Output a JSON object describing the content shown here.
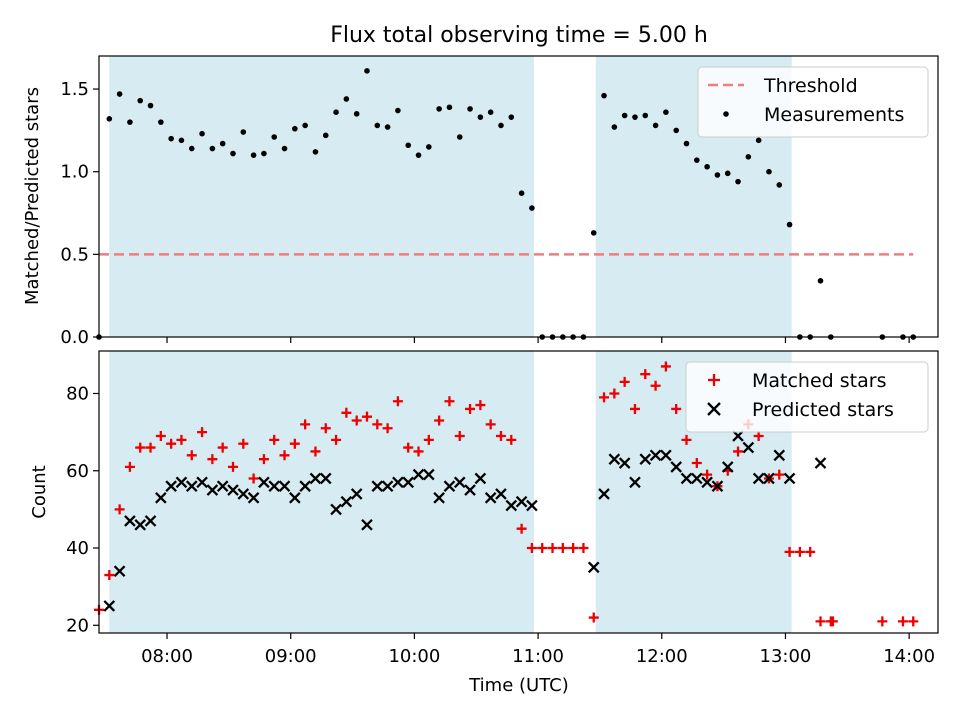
{
  "chart_data": [
    {
      "type": "scatter",
      "title": "Flux total observing time = 5.00 h",
      "xlabel": "",
      "ylabel": "Matched/Predicted stars",
      "xlim": [
        "07:27",
        "14:14"
      ],
      "ylim": [
        0,
        1.7
      ],
      "yticks": [
        0.0,
        0.5,
        1.0,
        1.5
      ],
      "ytick_labels": [
        "0.0",
        "0.5",
        "1.0",
        "1.5"
      ],
      "grid": false,
      "legend": {
        "placement": "top-right",
        "entries": [
          "Threshold",
          "Measurements"
        ]
      },
      "shaded_intervals": [
        [
          "07:32",
          "10:58"
        ],
        [
          "11:28",
          "13:03"
        ]
      ],
      "threshold": {
        "name": "Threshold",
        "value": 0.5,
        "x_range": [
          "07:27",
          "14:02"
        ],
        "color": "#f07d7d",
        "style": "dashed"
      },
      "series": [
        {
          "name": "Measurements",
          "color": "#000000",
          "marker": "dot",
          "points": [
            [
              "07:27",
              0.0
            ],
            [
              "07:32",
              1.32
            ],
            [
              "07:37",
              1.47
            ],
            [
              "07:42",
              1.3
            ],
            [
              "07:47",
              1.43
            ],
            [
              "07:52",
              1.4
            ],
            [
              "07:57",
              1.3
            ],
            [
              "08:02",
              1.2
            ],
            [
              "08:07",
              1.19
            ],
            [
              "08:12",
              1.14
            ],
            [
              "08:17",
              1.23
            ],
            [
              "08:22",
              1.14
            ],
            [
              "08:27",
              1.17
            ],
            [
              "08:32",
              1.11
            ],
            [
              "08:37",
              1.24
            ],
            [
              "08:42",
              1.1
            ],
            [
              "08:47",
              1.11
            ],
            [
              "08:52",
              1.21
            ],
            [
              "08:57",
              1.14
            ],
            [
              "09:02",
              1.26
            ],
            [
              "09:07",
              1.28
            ],
            [
              "09:12",
              1.12
            ],
            [
              "09:17",
              1.22
            ],
            [
              "09:22",
              1.36
            ],
            [
              "09:27",
              1.44
            ],
            [
              "09:32",
              1.35
            ],
            [
              "09:37",
              1.61
            ],
            [
              "09:42",
              1.28
            ],
            [
              "09:47",
              1.27
            ],
            [
              "09:52",
              1.37
            ],
            [
              "09:57",
              1.16
            ],
            [
              "10:02",
              1.1
            ],
            [
              "10:07",
              1.15
            ],
            [
              "10:12",
              1.38
            ],
            [
              "10:17",
              1.39
            ],
            [
              "10:22",
              1.21
            ],
            [
              "10:27",
              1.38
            ],
            [
              "10:32",
              1.33
            ],
            [
              "10:37",
              1.36
            ],
            [
              "10:42",
              1.28
            ],
            [
              "10:47",
              1.33
            ],
            [
              "10:52",
              0.87
            ],
            [
              "10:57",
              0.78
            ],
            [
              "11:02",
              0.0
            ],
            [
              "11:07",
              0.0
            ],
            [
              "11:12",
              0.0
            ],
            [
              "11:17",
              0.0
            ],
            [
              "11:22",
              0.0
            ],
            [
              "11:27",
              0.63
            ],
            [
              "11:32",
              1.46
            ],
            [
              "11:37",
              1.27
            ],
            [
              "11:42",
              1.34
            ],
            [
              "11:47",
              1.33
            ],
            [
              "11:52",
              1.34
            ],
            [
              "11:57",
              1.28
            ],
            [
              "12:02",
              1.36
            ],
            [
              "12:07",
              1.25
            ],
            [
              "12:12",
              1.17
            ],
            [
              "12:17",
              1.07
            ],
            [
              "12:22",
              1.03
            ],
            [
              "12:27",
              0.98
            ],
            [
              "12:32",
              0.99
            ],
            [
              "12:37",
              0.94
            ],
            [
              "12:42",
              1.09
            ],
            [
              "12:47",
              1.19
            ],
            [
              "12:52",
              1.0
            ],
            [
              "12:57",
              0.92
            ],
            [
              "13:02",
              0.68
            ],
            [
              "13:07",
              0.0
            ],
            [
              "13:12",
              0.0
            ],
            [
              "13:17",
              0.34
            ],
            [
              "13:22",
              0.0
            ],
            [
              "13:47",
              0.0
            ],
            [
              "13:57",
              0.0
            ],
            [
              "14:02",
              0.0
            ]
          ]
        }
      ]
    },
    {
      "type": "scatter",
      "title": "",
      "xlabel": "Time (UTC)",
      "ylabel": "Count",
      "xlim": [
        "07:27",
        "14:14"
      ],
      "ylim": [
        18,
        91
      ],
      "xticks": [
        "08:00",
        "09:00",
        "10:00",
        "11:00",
        "12:00",
        "13:00",
        "14:00"
      ],
      "yticks": [
        20,
        40,
        60,
        80
      ],
      "ytick_labels": [
        "20",
        "40",
        "60",
        "80"
      ],
      "grid": false,
      "legend": {
        "placement": "top-right",
        "entries": [
          "Matched stars",
          "Predicted stars"
        ]
      },
      "shaded_intervals": [
        [
          "07:32",
          "10:58"
        ],
        [
          "11:28",
          "13:03"
        ]
      ],
      "series": [
        {
          "name": "Matched stars",
          "color": "#ee0000",
          "marker": "plus",
          "points": [
            [
              "07:27",
              24
            ],
            [
              "07:32",
              33
            ],
            [
              "07:37",
              50
            ],
            [
              "07:42",
              61
            ],
            [
              "07:47",
              66
            ],
            [
              "07:52",
              66
            ],
            [
              "07:57",
              69
            ],
            [
              "08:02",
              67
            ],
            [
              "08:07",
              68
            ],
            [
              "08:12",
              64
            ],
            [
              "08:17",
              70
            ],
            [
              "08:22",
              63
            ],
            [
              "08:27",
              66
            ],
            [
              "08:32",
              61
            ],
            [
              "08:37",
              67
            ],
            [
              "08:42",
              58
            ],
            [
              "08:47",
              63
            ],
            [
              "08:52",
              68
            ],
            [
              "08:57",
              64
            ],
            [
              "09:02",
              67
            ],
            [
              "09:07",
              72
            ],
            [
              "09:12",
              65
            ],
            [
              "09:17",
              71
            ],
            [
              "09:22",
              68
            ],
            [
              "09:27",
              75
            ],
            [
              "09:32",
              73
            ],
            [
              "09:37",
              74
            ],
            [
              "09:42",
              72
            ],
            [
              "09:47",
              71
            ],
            [
              "09:52",
              78
            ],
            [
              "09:57",
              66
            ],
            [
              "10:02",
              65
            ],
            [
              "10:07",
              68
            ],
            [
              "10:12",
              73
            ],
            [
              "10:17",
              78
            ],
            [
              "10:22",
              69
            ],
            [
              "10:27",
              76
            ],
            [
              "10:32",
              77
            ],
            [
              "10:37",
              72
            ],
            [
              "10:42",
              69
            ],
            [
              "10:47",
              68
            ],
            [
              "10:52",
              45
            ],
            [
              "10:57",
              40
            ],
            [
              "11:02",
              40
            ],
            [
              "11:07",
              40
            ],
            [
              "11:12",
              40
            ],
            [
              "11:17",
              40
            ],
            [
              "11:22",
              40
            ],
            [
              "11:27",
              22
            ],
            [
              "11:32",
              79
            ],
            [
              "11:37",
              80
            ],
            [
              "11:42",
              83
            ],
            [
              "11:47",
              76
            ],
            [
              "11:52",
              85
            ],
            [
              "11:57",
              82
            ],
            [
              "12:02",
              87
            ],
            [
              "12:07",
              76
            ],
            [
              "12:12",
              68
            ],
            [
              "12:17",
              62
            ],
            [
              "12:22",
              59
            ],
            [
              "12:27",
              56
            ],
            [
              "12:32",
              60
            ],
            [
              "12:37",
              65
            ],
            [
              "12:42",
              72
            ],
            [
              "12:47",
              69
            ],
            [
              "12:52",
              58
            ],
            [
              "12:57",
              59
            ],
            [
              "13:02",
              39
            ],
            [
              "13:07",
              39
            ],
            [
              "13:12",
              39
            ],
            [
              "13:17",
              21
            ],
            [
              "13:22",
              21
            ],
            [
              "13:23",
              21
            ],
            [
              "13:47",
              21
            ],
            [
              "13:57",
              21
            ],
            [
              "14:02",
              21
            ]
          ]
        },
        {
          "name": "Predicted stars",
          "color": "#000000",
          "marker": "x",
          "points": [
            [
              "07:32",
              25
            ],
            [
              "07:37",
              34
            ],
            [
              "07:42",
              47
            ],
            [
              "07:47",
              46
            ],
            [
              "07:52",
              47
            ],
            [
              "07:57",
              53
            ],
            [
              "08:02",
              56
            ],
            [
              "08:07",
              57
            ],
            [
              "08:12",
              56
            ],
            [
              "08:17",
              57
            ],
            [
              "08:22",
              55
            ],
            [
              "08:27",
              56
            ],
            [
              "08:32",
              55
            ],
            [
              "08:37",
              54
            ],
            [
              "08:42",
              53
            ],
            [
              "08:47",
              57
            ],
            [
              "08:52",
              56
            ],
            [
              "08:57",
              56
            ],
            [
              "09:02",
              53
            ],
            [
              "09:07",
              56
            ],
            [
              "09:12",
              58
            ],
            [
              "09:17",
              58
            ],
            [
              "09:22",
              50
            ],
            [
              "09:27",
              52
            ],
            [
              "09:32",
              54
            ],
            [
              "09:37",
              46
            ],
            [
              "09:42",
              56
            ],
            [
              "09:47",
              56
            ],
            [
              "09:52",
              57
            ],
            [
              "09:57",
              57
            ],
            [
              "10:02",
              59
            ],
            [
              "10:07",
              59
            ],
            [
              "10:12",
              53
            ],
            [
              "10:17",
              56
            ],
            [
              "10:22",
              57
            ],
            [
              "10:27",
              55
            ],
            [
              "10:32",
              58
            ],
            [
              "10:37",
              53
            ],
            [
              "10:42",
              54
            ],
            [
              "10:47",
              51
            ],
            [
              "10:52",
              52
            ],
            [
              "10:57",
              51
            ],
            [
              "11:27",
              35
            ],
            [
              "11:32",
              54
            ],
            [
              "11:37",
              63
            ],
            [
              "11:42",
              62
            ],
            [
              "11:47",
              57
            ],
            [
              "11:52",
              63
            ],
            [
              "11:57",
              64
            ],
            [
              "12:02",
              64
            ],
            [
              "12:07",
              61
            ],
            [
              "12:12",
              58
            ],
            [
              "12:17",
              58
            ],
            [
              "12:22",
              57
            ],
            [
              "12:27",
              56
            ],
            [
              "12:32",
              61
            ],
            [
              "12:37",
              69
            ],
            [
              "12:42",
              66
            ],
            [
              "12:47",
              58
            ],
            [
              "12:52",
              58
            ],
            [
              "12:57",
              64
            ],
            [
              "13:02",
              58
            ],
            [
              "13:17",
              62
            ]
          ]
        }
      ]
    }
  ],
  "colors": {
    "shade": "#add8e6",
    "shade_alpha": 0.5
  }
}
